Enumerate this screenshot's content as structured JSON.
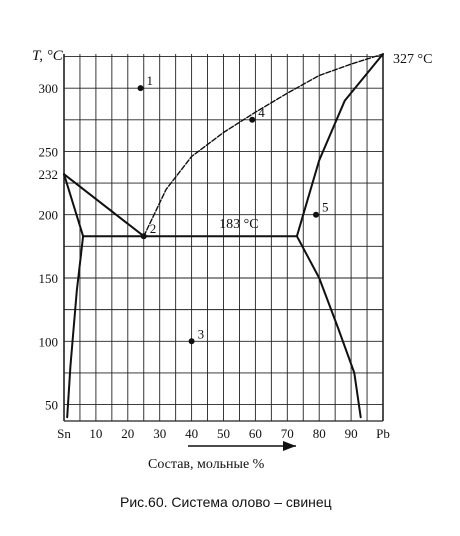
{
  "chart_data": {
    "type": "phase-diagram",
    "y_axis_label": "T, °C",
    "x_axis_label": "Состав, мольные %",
    "caption": "Рис.60. Система олово – свинец",
    "x_ticks": [
      {
        "label": "Sn",
        "value": 0
      },
      {
        "label": "10",
        "value": 10
      },
      {
        "label": "20",
        "value": 20
      },
      {
        "label": "30",
        "value": 30
      },
      {
        "label": "40",
        "value": 40
      },
      {
        "label": "50",
        "value": 50
      },
      {
        "label": "60",
        "value": 60
      },
      {
        "label": "70",
        "value": 70
      },
      {
        "label": "80",
        "value": 80
      },
      {
        "label": "90",
        "value": 90
      },
      {
        "label": "Pb",
        "value": 100
      }
    ],
    "y_ticks": [
      {
        "label": "50",
        "value": 50
      },
      {
        "label": "100",
        "value": 100
      },
      {
        "label": "150",
        "value": 150
      },
      {
        "label": "200",
        "value": 200
      },
      {
        "label": "232",
        "value": 232
      },
      {
        "label": "250",
        "value": 250
      },
      {
        "label": "300",
        "value": 300
      }
    ],
    "annotations": [
      {
        "label": "327 °C",
        "x": 100,
        "y": 327
      },
      {
        "label": "183 °C",
        "x": 61,
        "y": 183
      }
    ],
    "points": [
      {
        "label": "1",
        "x": 24,
        "y": 300
      },
      {
        "label": "2",
        "x": 25,
        "y": 183
      },
      {
        "label": "3",
        "x": 40,
        "y": 100
      },
      {
        "label": "4",
        "x": 59,
        "y": 275
      },
      {
        "label": "5",
        "x": 79,
        "y": 200
      }
    ],
    "curves": [
      {
        "name": "liquidus-sn",
        "style": "solid",
        "points": [
          [
            0,
            232
          ],
          [
            25,
            183
          ]
        ]
      },
      {
        "name": "liquidus-pb",
        "style": "dashed",
        "points": [
          [
            25,
            183
          ],
          [
            32,
            220
          ],
          [
            40,
            246
          ],
          [
            50,
            265
          ],
          [
            60,
            281
          ],
          [
            70,
            296
          ],
          [
            80,
            310
          ],
          [
            90,
            319
          ],
          [
            100,
            327
          ]
        ]
      },
      {
        "name": "eutectic-line",
        "style": "solid",
        "points": [
          [
            6,
            183
          ],
          [
            73,
            183
          ]
        ]
      },
      {
        "name": "solidus-sn",
        "style": "solid",
        "points": [
          [
            0,
            232
          ],
          [
            6,
            183
          ]
        ]
      },
      {
        "name": "solvus-sn",
        "style": "solid",
        "points": [
          [
            6,
            183
          ],
          [
            4,
            140
          ],
          [
            2,
            80
          ],
          [
            1,
            40
          ]
        ]
      },
      {
        "name": "solidus-pb",
        "style": "solid",
        "points": [
          [
            73,
            183
          ],
          [
            80,
            243
          ],
          [
            88,
            290
          ],
          [
            100,
            327
          ]
        ]
      },
      {
        "name": "solvus-pb",
        "style": "solid",
        "points": [
          [
            73,
            183
          ],
          [
            80,
            150
          ],
          [
            86,
            110
          ],
          [
            91,
            75
          ],
          [
            93,
            40
          ]
        ]
      }
    ],
    "grid": true
  }
}
